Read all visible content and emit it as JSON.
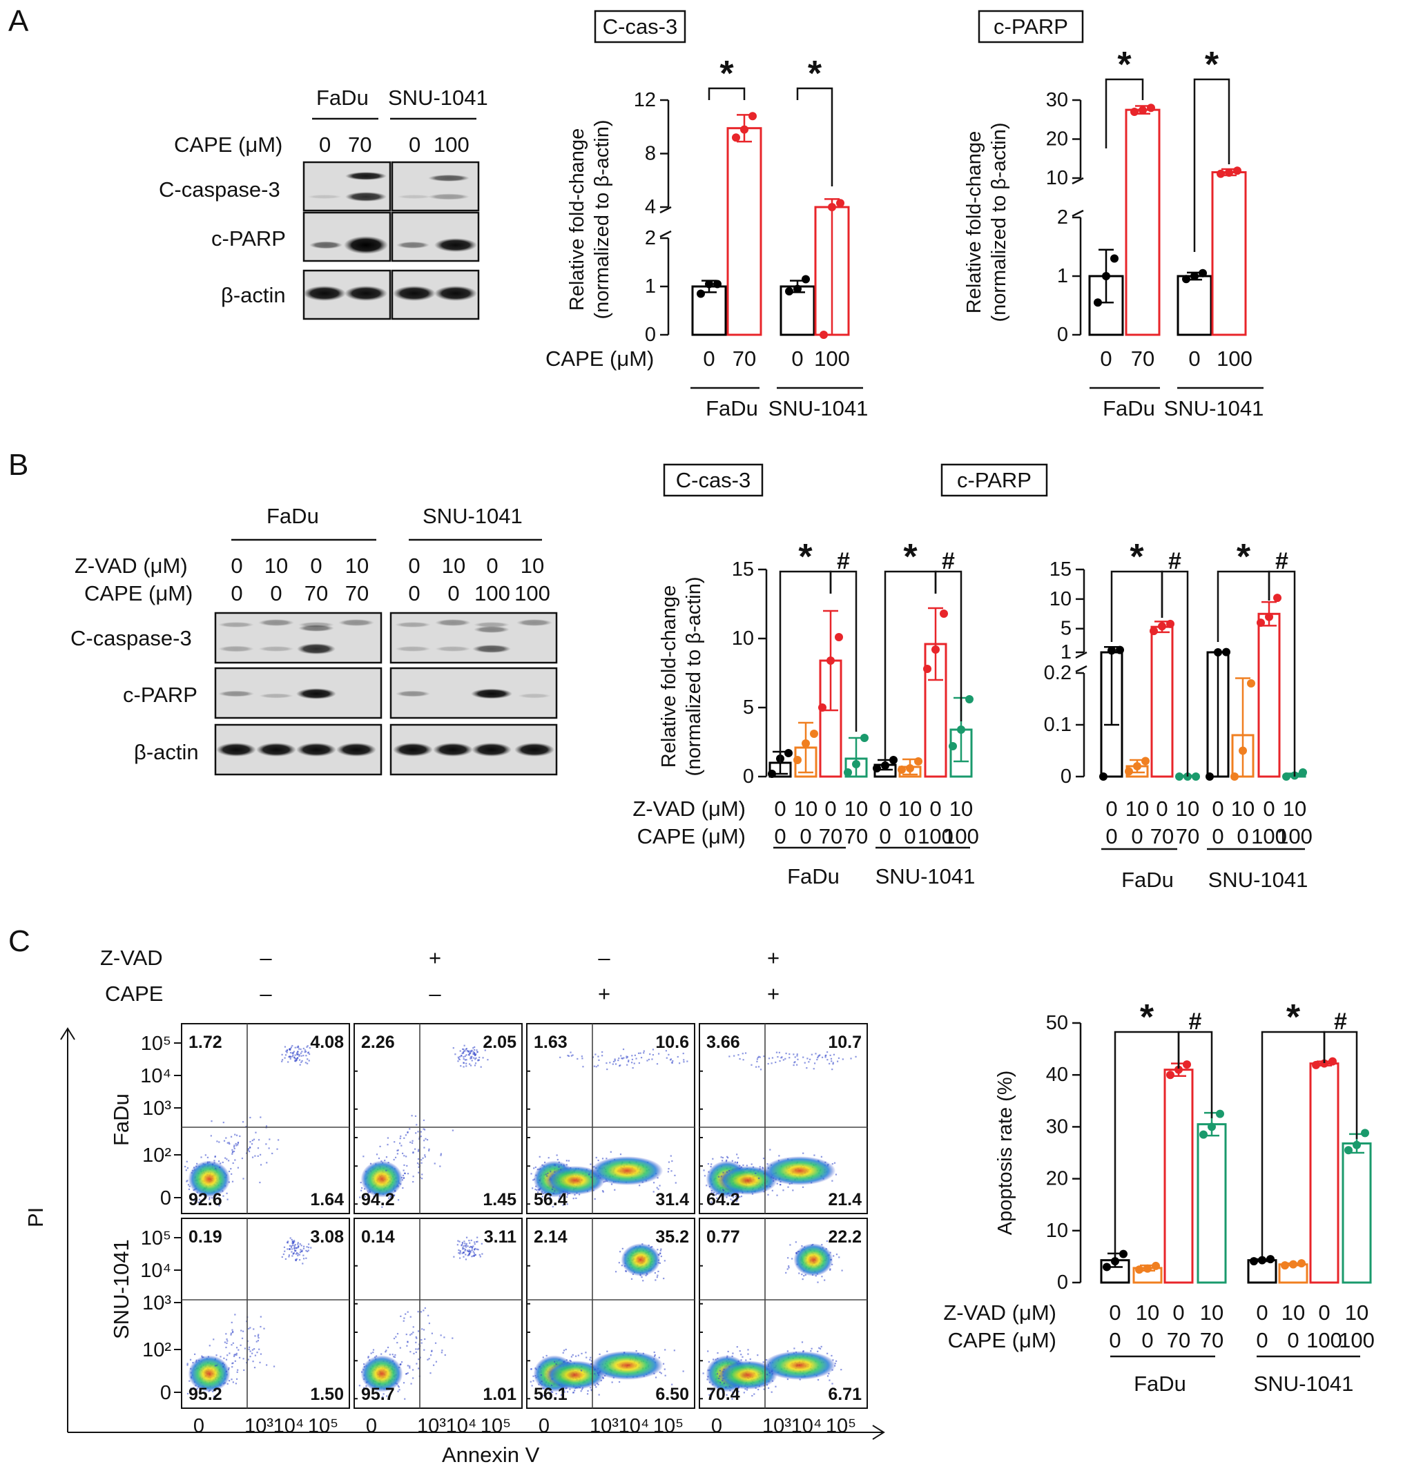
{
  "panels": {
    "A": "A",
    "B": "B",
    "C": "C"
  },
  "colors": {
    "ctrl": "#000000",
    "zvad": "#f07f20",
    "cape": "#e8252a",
    "combo": "#1a9a6c",
    "blot_bg": "#d8d8d8",
    "flow_blue": "#2c3fc9"
  },
  "common": {
    "fadu": "FaDu",
    "snu": "SNU-1041",
    "cape_um": "CAPE (μM)",
    "zvad_um": "Z-VAD  (μM)",
    "cape_um_b": "CAPE (μM)",
    "zvad_um_b": "Z-VAD  (μM)",
    "star": "*",
    "hash": "#",
    "ylabel1": "Relative fold-change",
    "ylabel2": "(normalized to β-actin)",
    "ylabel_apop": "Apoptosis rate (%)"
  },
  "blotA": {
    "doses": [
      "0",
      "70",
      "0",
      "100"
    ],
    "rows": [
      "C-caspase-3",
      "c-PARP",
      "β-actin"
    ]
  },
  "blotB": {
    "zvad": [
      "0",
      "10",
      "0",
      "10",
      "0",
      "10",
      "0",
      "10"
    ],
    "cape": [
      "0",
      "0",
      "70",
      "70",
      "0",
      "0",
      "100",
      "100"
    ],
    "rows": [
      "C-caspase-3",
      "c-PARP",
      "β-actin"
    ]
  },
  "flow": {
    "zvad_label": "Z-VAD",
    "cape_label": "CAPE",
    "zvad_signs": [
      "–",
      "+",
      "–",
      "+"
    ],
    "cape_signs": [
      "–",
      "–",
      "+",
      "+"
    ],
    "xlabel": "Annexin V",
    "ylabel": "PI",
    "row_labels": [
      "FaDu",
      "SNU-1041"
    ],
    "y_ticks": [
      "10⁵",
      "10⁴",
      "10³",
      "10²",
      "0"
    ],
    "x_ticks": [
      "0",
      "10³",
      "10⁴",
      "10⁵"
    ],
    "quadrants": [
      [
        [
          "1.72",
          "4.08",
          "92.6",
          "1.64"
        ],
        [
          "2.26",
          "2.05",
          "94.2",
          "1.45"
        ],
        [
          "1.63",
          "10.6",
          "56.4",
          "31.4"
        ],
        [
          "3.66",
          "10.7",
          "64.2",
          "21.4"
        ]
      ],
      [
        [
          "0.19",
          "3.08",
          "95.2",
          "1.50"
        ],
        [
          "0.14",
          "3.11",
          "95.7",
          "1.01"
        ],
        [
          "2.14",
          "35.2",
          "56.1",
          "6.50"
        ],
        [
          "0.77",
          "22.2",
          "70.4",
          "6.71"
        ]
      ]
    ]
  },
  "chart_data": [
    {
      "type": "bar",
      "title": "C-cas-3",
      "categories": [
        "FaDu 0",
        "FaDu 70",
        "SNU-1041 0",
        "SNU-1041 100"
      ],
      "x_dose_labels": [
        "0",
        "70",
        "0",
        "100"
      ],
      "values": [
        1.0,
        9.9,
        1.0,
        4.0
      ],
      "errors": [
        0.12,
        1.0,
        0.12,
        0.6
      ],
      "points": [
        [
          0.85,
          1.05,
          1.05
        ],
        [
          9.2,
          9.8,
          10.8
        ],
        [
          0.9,
          0.95,
          1.15
        ],
        [
          3.6,
          4.0,
          4.3
        ]
      ],
      "bar_colors": [
        "ctrl",
        "cape",
        "ctrl",
        "cape"
      ],
      "ylabel": "Relative fold-change (normalized to β-actin)",
      "y_ticks_lower": [
        "0",
        "1",
        "2"
      ],
      "y_ticks_upper": [
        "4",
        "8",
        "12"
      ],
      "ylim_lower": [
        0,
        2
      ],
      "ylim_upper": [
        4,
        12
      ],
      "significance": [
        "*",
        "*"
      ]
    },
    {
      "type": "bar",
      "title": "c-PARP",
      "categories": [
        "FaDu 0",
        "FaDu 70",
        "SNU-1041 0",
        "SNU-1041 100"
      ],
      "x_dose_labels": [
        "0",
        "70",
        "0",
        "100"
      ],
      "values": [
        1.0,
        27.5,
        1.0,
        11.5
      ],
      "errors": [
        0.45,
        1.0,
        0.06,
        0.8
      ],
      "points": [
        [
          0.55,
          1.0,
          1.3
        ],
        [
          27.0,
          27.4,
          28.0
        ],
        [
          0.95,
          1.0,
          1.05
        ],
        [
          11.1,
          11.4,
          11.9
        ]
      ],
      "bar_colors": [
        "ctrl",
        "cape",
        "ctrl",
        "cape"
      ],
      "ylabel": "Relative fold-change (normalized to β-actin)",
      "y_ticks_lower": [
        "0",
        "1",
        "2"
      ],
      "y_ticks_upper": [
        "10",
        "20",
        "30"
      ],
      "ylim_lower": [
        0,
        2
      ],
      "ylim_upper": [
        10,
        30
      ],
      "significance": [
        "*",
        "*"
      ]
    },
    {
      "type": "bar",
      "title": "C-cas-3",
      "categories": [
        "FaDu 0/0",
        "FaDu 10/0",
        "FaDu 0/70",
        "FaDu 10/70",
        "SNU-1041 0/0",
        "SNU-1041 10/0",
        "SNU-1041 0/100",
        "SNU-1041 10/100"
      ],
      "zvad_labels": [
        "0",
        "10",
        "0",
        "10",
        "0",
        "10",
        "0",
        "10"
      ],
      "cape_labels": [
        "0",
        "0",
        "70",
        "70",
        "0",
        "0",
        "100",
        "100"
      ],
      "values": [
        1.0,
        2.1,
        8.4,
        1.3,
        0.85,
        0.7,
        9.6,
        3.4
      ],
      "errors": [
        0.8,
        1.8,
        3.6,
        1.5,
        0.35,
        0.55,
        2.6,
        2.3
      ],
      "points": [
        [
          0.2,
          1.3,
          1.7
        ],
        [
          1.2,
          2.4,
          3.1
        ],
        [
          5.0,
          8.4,
          10.1
        ],
        [
          0.3,
          0.9,
          2.8
        ],
        [
          0.6,
          0.8,
          1.2
        ],
        [
          0.5,
          0.6,
          1.1
        ],
        [
          7.8,
          9.2,
          11.8
        ],
        [
          2.2,
          3.4,
          5.6
        ]
      ],
      "bar_colors": [
        "ctrl",
        "zvad",
        "cape",
        "combo",
        "ctrl",
        "zvad",
        "cape",
        "combo"
      ],
      "ylabel": "Relative fold-change (normalized to β-actin)",
      "y_ticks": [
        "0",
        "5",
        "10",
        "15"
      ],
      "ylim": [
        0,
        15
      ],
      "significance": [
        "*",
        "#",
        "*",
        "#"
      ]
    },
    {
      "type": "bar",
      "title": "c-PARP",
      "categories": [
        "FaDu 0/0",
        "FaDu 10/0",
        "FaDu 0/70",
        "FaDu 10/70",
        "SNU-1041 0/0",
        "SNU-1041 10/0",
        "SNU-1041 0/100",
        "SNU-1041 10/100"
      ],
      "zvad_labels": [
        "0",
        "10",
        "0",
        "10",
        "0",
        "10",
        "0",
        "10"
      ],
      "cape_labels": [
        "0",
        "0",
        "70",
        "70",
        "0",
        "0",
        "100",
        "100"
      ],
      "values": [
        1.0,
        0.02,
        5.3,
        0.001,
        1.0,
        0.08,
        7.5,
        0.003
      ],
      "errors": [
        0.9,
        0.012,
        0.9,
        0.001,
        0.05,
        0.11,
        2.0,
        0.003
      ],
      "points": [
        [
          0.0,
          1.3,
          1.4
        ],
        [
          0.01,
          0.02,
          0.03
        ],
        [
          4.6,
          5.4,
          5.8
        ],
        [
          0.0,
          0.0,
          0.0
        ],
        [
          0.95,
          1.0,
          1.05
        ],
        [
          0.0,
          0.05,
          0.18
        ],
        [
          6.0,
          7.0,
          10.2
        ],
        [
          0.0,
          0.002,
          0.008
        ]
      ],
      "bar_colors": [
        "ctrl",
        "zvad",
        "cape",
        "combo",
        "ctrl",
        "zvad",
        "cape",
        "combo"
      ],
      "ylabel": "",
      "y_ticks_lower": [
        "0",
        "0.1",
        "0.2"
      ],
      "y_ticks_upper": [
        "1",
        "5",
        "10",
        "15"
      ],
      "ylim_lower": [
        0,
        0.2
      ],
      "ylim_upper": [
        1,
        15
      ],
      "significance": [
        "*",
        "#",
        "*",
        "#"
      ]
    },
    {
      "type": "bar",
      "title": "",
      "categories": [
        "FaDu 0/0",
        "FaDu 10/0",
        "FaDu 0/70",
        "FaDu 10/70",
        "SNU-1041 0/0",
        "SNU-1041 10/0",
        "SNU-1041 0/100",
        "SNU-1041 10/100"
      ],
      "zvad_labels": [
        "0",
        "10",
        "0",
        "10",
        "0",
        "10",
        "0",
        "10"
      ],
      "cape_labels": [
        "0",
        "0",
        "70",
        "70",
        "0",
        "0",
        "100",
        "100"
      ],
      "values": [
        4.3,
        2.8,
        41.0,
        30.5,
        4.3,
        3.5,
        42.2,
        26.8
      ],
      "errors": [
        1.3,
        0.5,
        1.2,
        2.2,
        0.2,
        0.2,
        0.4,
        1.8
      ],
      "points": [
        [
          3.0,
          4.1,
          5.5
        ],
        [
          2.5,
          2.7,
          3.2
        ],
        [
          40.0,
          41.0,
          42.0
        ],
        [
          28.5,
          30.0,
          32.5
        ],
        [
          4.1,
          4.3,
          4.5
        ],
        [
          3.3,
          3.5,
          3.7
        ],
        [
          41.9,
          42.2,
          42.6
        ],
        [
          25.5,
          26.5,
          28.8
        ]
      ],
      "bar_colors": [
        "ctrl",
        "zvad",
        "cape",
        "combo",
        "ctrl",
        "zvad",
        "cape",
        "combo"
      ],
      "ylabel": "Apoptosis rate (%)",
      "y_ticks": [
        "0",
        "10",
        "20",
        "30",
        "40",
        "50"
      ],
      "ylim": [
        0,
        50
      ],
      "significance": [
        "*",
        "#",
        "*",
        "#"
      ]
    }
  ]
}
